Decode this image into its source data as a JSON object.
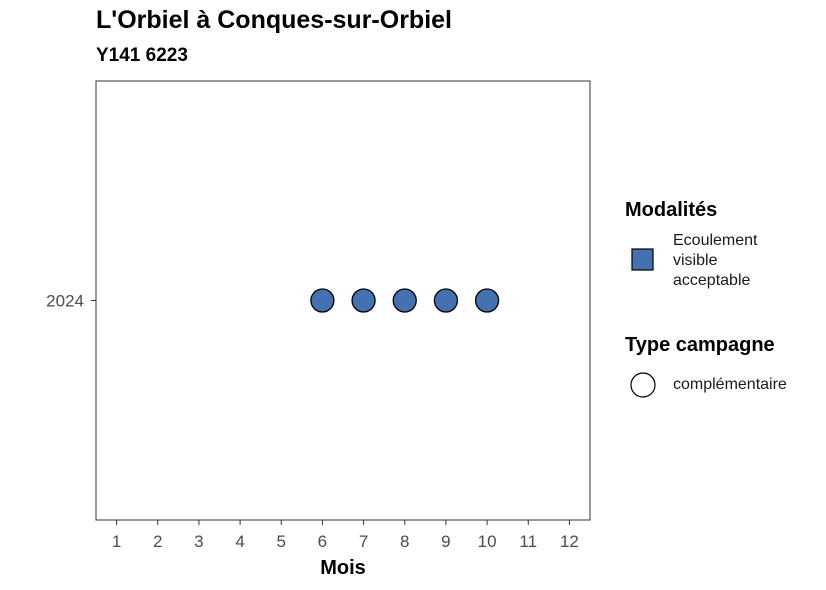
{
  "title": "L'Orbiel à Conques-sur-Orbiel",
  "subtitle": "Y141 6223",
  "chart_data": {
    "type": "scatter",
    "title": "L'Orbiel à Conques-sur-Orbiel",
    "subtitle": "Y141 6223",
    "xlabel": "Mois",
    "ylabel": "",
    "x_ticks": [
      "1",
      "2",
      "3",
      "4",
      "5",
      "6",
      "7",
      "8",
      "9",
      "10",
      "11",
      "12"
    ],
    "xlim": [
      0.5,
      12.5
    ],
    "y_categories": [
      "2024"
    ],
    "grid": false,
    "legend_position": "right",
    "series": [
      {
        "name": "Ecoulement visible acceptable",
        "campaign_type": "complémentaire",
        "color": "#4472b0",
        "points": [
          {
            "x": 6,
            "y": "2024"
          },
          {
            "x": 7,
            "y": "2024"
          },
          {
            "x": 8,
            "y": "2024"
          },
          {
            "x": 9,
            "y": "2024"
          },
          {
            "x": 10,
            "y": "2024"
          }
        ]
      }
    ]
  },
  "legend": {
    "modalites_title": "Modalités",
    "modalites_items": [
      {
        "label_lines": [
          "Ecoulement",
          "visible",
          "acceptable"
        ],
        "color": "#4472b0"
      }
    ],
    "campagne_title": "Type campagne",
    "campagne_items": [
      {
        "label": "complémentaire"
      }
    ]
  }
}
